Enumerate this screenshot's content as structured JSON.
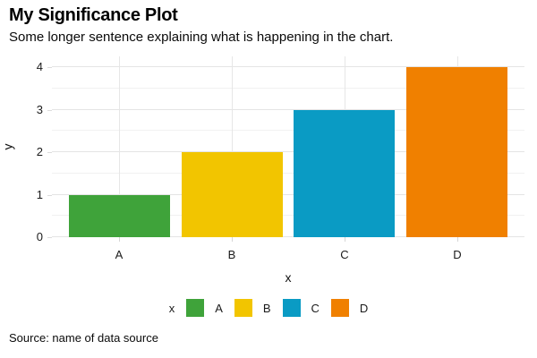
{
  "header": {
    "title": "My Significance Plot",
    "subtitle": "Some longer sentence explaining what is happening in the chart."
  },
  "chart_data": {
    "type": "bar",
    "title": "My Significance Plot",
    "subtitle": "Some longer sentence explaining what is happening in the chart.",
    "categories": [
      "A",
      "B",
      "C",
      "D"
    ],
    "values": [
      1,
      2,
      3,
      4
    ],
    "colors": [
      "#3FA33A",
      "#F2C500",
      "#0A9BC4",
      "#F08000"
    ],
    "xlabel": "x",
    "ylabel": "y",
    "ylim": [
      0,
      4
    ],
    "yticks": [
      0,
      1,
      2,
      3,
      4
    ],
    "grid": "horizontal major + minor, vertical at category centers",
    "legend_position": "bottom",
    "legend_title": "x"
  },
  "legend": {
    "title": "x",
    "items": [
      {
        "label": "A",
        "color": "#3FA33A"
      },
      {
        "label": "B",
        "color": "#F2C500"
      },
      {
        "label": "C",
        "color": "#0A9BC4"
      },
      {
        "label": "D",
        "color": "#F08000"
      }
    ]
  },
  "footer": {
    "source": "Source: name of data source"
  }
}
